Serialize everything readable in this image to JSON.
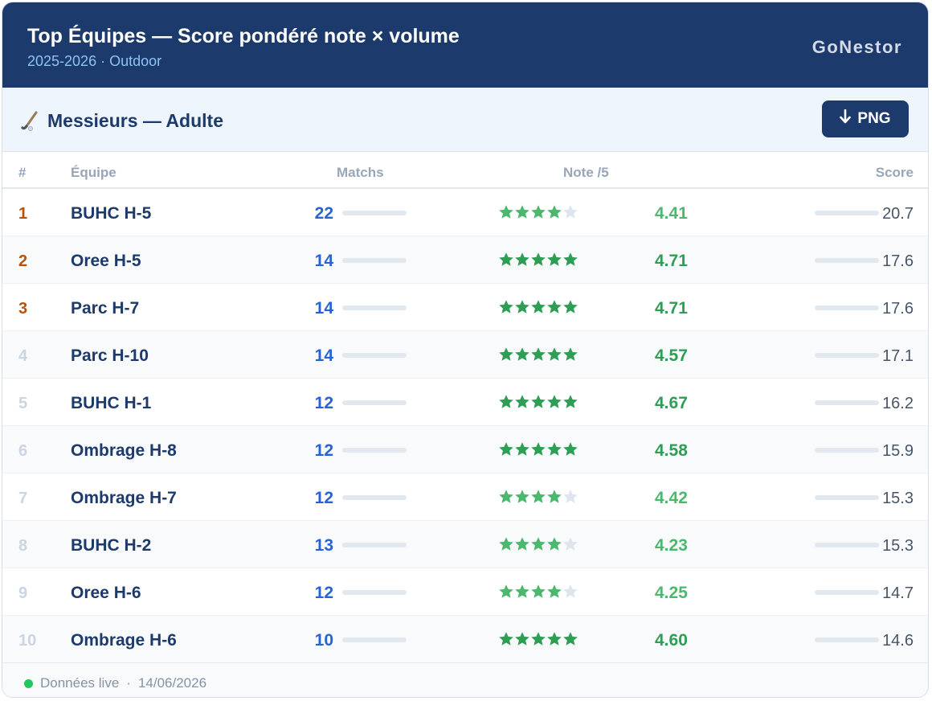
{
  "header": {
    "title": "Top Équipes — Score pondéré note × volume",
    "subtitle": "2025-2026 · Outdoor",
    "brand": "GoNestor"
  },
  "section": {
    "title": "Messieurs — Adulte",
    "icon": "hockey-stick-icon",
    "download_label": "PNG",
    "download_icon": "arrow-down-icon"
  },
  "table": {
    "columns": {
      "rank": "#",
      "team": "Équipe",
      "matches": "Matchs",
      "note": "Note /5",
      "score": "Score"
    },
    "rows": [
      {
        "rank": "1",
        "team": "BUHC H-5",
        "matches": "22",
        "note": "4.41",
        "score": "20.7",
        "stars": 4
      },
      {
        "rank": "2",
        "team": "Oree H-5",
        "matches": "14",
        "note": "4.71",
        "score": "17.6",
        "stars": 5
      },
      {
        "rank": "3",
        "team": "Parc H-7",
        "matches": "14",
        "note": "4.71",
        "score": "17.6",
        "stars": 5
      },
      {
        "rank": "4",
        "team": "Parc H-10",
        "matches": "14",
        "note": "4.57",
        "score": "17.1",
        "stars": 5
      },
      {
        "rank": "5",
        "team": "BUHC H-1",
        "matches": "12",
        "note": "4.67",
        "score": "16.2",
        "stars": 5
      },
      {
        "rank": "6",
        "team": "Ombrage H-8",
        "matches": "12",
        "note": "4.58",
        "score": "15.9",
        "stars": 5
      },
      {
        "rank": "7",
        "team": "Ombrage H-7",
        "matches": "12",
        "note": "4.42",
        "score": "15.3",
        "stars": 4
      },
      {
        "rank": "8",
        "team": "BUHC H-2",
        "matches": "13",
        "note": "4.23",
        "score": "15.3",
        "stars": 4
      },
      {
        "rank": "9",
        "team": "Oree H-6",
        "matches": "12",
        "note": "4.25",
        "score": "14.7",
        "stars": 4
      },
      {
        "rank": "10",
        "team": "Ombrage H-6",
        "matches": "10",
        "note": "4.60",
        "score": "14.6",
        "stars": 5
      }
    ]
  },
  "footer": {
    "status": "Données live",
    "date": "14/06/2026"
  },
  "colors": {
    "navy": "#1c3a6b",
    "podium_rank": "#b45309",
    "other_rank": "#cbd5e1",
    "matches_blue": "#2563d6",
    "note_green": "#2e9e55",
    "note_green_light": "#4cb86e",
    "star_empty": "#dfe5ec",
    "live_dot": "#22c55e"
  }
}
